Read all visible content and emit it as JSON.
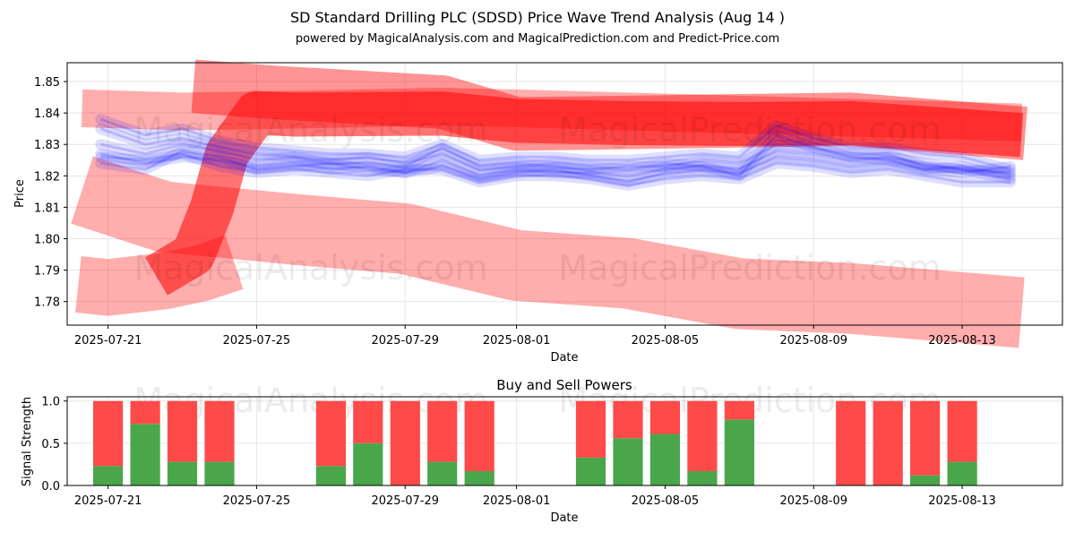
{
  "header": {
    "title": "SD Standard Drilling PLC (SDSD) Price Wave Trend Analysis (Aug 14 )",
    "subtitle": "powered by MagicalAnalysis.com and MagicalPrediction.com and Predict-Price.com"
  },
  "watermarks": [
    "MagicalAnalysis.com",
    "MagicalPrediction.com"
  ],
  "colors": {
    "red_band": "#ff0000",
    "blue_band": "#0000ff",
    "buy": "#4aa64a",
    "sell": "#ff4a4a",
    "grid": "#e6e6e6"
  },
  "chart_data": [
    {
      "type": "area",
      "title": "",
      "xlabel": "Date",
      "ylabel": "Price",
      "x_ticks": [
        "2025-07-21",
        "2025-07-25",
        "2025-07-29",
        "2025-08-01",
        "2025-08-05",
        "2025-08-09",
        "2025-08-13"
      ],
      "y_ticks": [
        "1.78",
        "1.79",
        "1.80",
        "1.81",
        "1.82",
        "1.83",
        "1.84",
        "1.85"
      ],
      "ylim": [
        1.7725,
        1.856
      ],
      "xlim_days": [
        -1.1,
        25.7
      ],
      "red_bands": [
        {
          "name": "upper-band",
          "x": [
            -0.7,
            2,
            5,
            9,
            11,
            14,
            17,
            20,
            24.6
          ],
          "y": [
            1.8415,
            1.8405,
            1.841,
            1.842,
            1.8415,
            1.8405,
            1.8395,
            1.8385,
            1.837
          ],
          "width": 0.012,
          "opacity": 0.32
        },
        {
          "name": "wide-upper-band",
          "x": [
            2.3,
            4.5,
            9,
            11,
            14,
            17,
            20,
            24.7
          ],
          "y": [
            1.8485,
            1.8465,
            1.8435,
            1.8365,
            1.837,
            1.8375,
            1.838,
            1.8335
          ],
          "width": 0.017,
          "opacity": 0.42
        },
        {
          "name": "cross-band",
          "x": [
            1.3,
            2.3,
            2.8,
            3.2,
            4.0,
            5.0,
            9.0,
            11.0,
            14.0,
            17.0,
            20.0,
            24.6
          ],
          "y": [
            1.788,
            1.795,
            1.81,
            1.827,
            1.84,
            1.8395,
            1.8398,
            1.8375,
            1.8368,
            1.8365,
            1.8368,
            1.833
          ],
          "width": 0.014,
          "opacity": 0.55
        },
        {
          "name": "lower-band",
          "x": [
            -0.7,
            1.5,
            5,
            8,
            11,
            14,
            17,
            20,
            24.6
          ],
          "y": [
            1.8155,
            1.807,
            1.803,
            1.8,
            1.7915,
            1.789,
            1.7825,
            1.781,
            1.7765
          ],
          "width": 0.0225,
          "opacity": 0.32
        },
        {
          "name": "bottom-band",
          "x": [
            -0.8,
            0,
            1.5,
            2.5,
            3.4
          ],
          "y": [
            1.7855,
            1.7845,
            1.7865,
            1.789,
            1.7925
          ],
          "width": 0.018,
          "opacity": 0.32
        }
      ],
      "blue_lines": [
        {
          "x": [
            -0.2,
            1,
            2,
            3,
            4,
            5,
            6,
            7,
            8,
            9,
            10,
            11,
            12,
            13,
            14,
            15,
            16,
            17,
            18,
            19,
            20,
            21,
            22,
            23,
            24.3
          ],
          "y": [
            1.827,
            1.824,
            1.826,
            1.825,
            1.823,
            1.824,
            1.822,
            1.823,
            1.821,
            1.825,
            1.82,
            1.822,
            1.821,
            1.821,
            1.82,
            1.822,
            1.823,
            1.822,
            1.828,
            1.827,
            1.825,
            1.826,
            1.824,
            1.822,
            1.821
          ]
        },
        {
          "x": [
            -0.2,
            1,
            2,
            3,
            4,
            5,
            6,
            7,
            8,
            9,
            10,
            11,
            12,
            13,
            14,
            15,
            16,
            17,
            18,
            19,
            20,
            21,
            22,
            23,
            24.3
          ],
          "y": [
            1.835,
            1.83,
            1.832,
            1.829,
            1.827,
            1.826,
            1.825,
            1.826,
            1.824,
            1.827,
            1.822,
            1.823,
            1.824,
            1.823,
            1.822,
            1.824,
            1.823,
            1.82,
            1.833,
            1.829,
            1.827,
            1.827,
            1.823,
            1.822,
            1.819
          ]
        },
        {
          "x": [
            -0.2,
            1,
            2,
            3,
            4,
            5,
            6,
            7,
            8,
            9,
            10,
            11,
            12,
            13,
            14,
            15,
            16,
            17,
            18,
            19,
            20,
            21,
            22,
            23,
            24.3
          ],
          "y": [
            1.824,
            1.822,
            1.828,
            1.826,
            1.822,
            1.823,
            1.824,
            1.822,
            1.821,
            1.823,
            1.819,
            1.821,
            1.822,
            1.82,
            1.818,
            1.821,
            1.822,
            1.821,
            1.826,
            1.825,
            1.823,
            1.824,
            1.822,
            1.821,
            1.823
          ]
        },
        {
          "x": [
            -0.2,
            1,
            2,
            3,
            4,
            5,
            6,
            7,
            8,
            9,
            10,
            11,
            12,
            13,
            14,
            15,
            16,
            17,
            18,
            19,
            20,
            21,
            22,
            23,
            24.3
          ],
          "y": [
            1.83,
            1.827,
            1.83,
            1.828,
            1.825,
            1.826,
            1.824,
            1.824,
            1.823,
            1.829,
            1.823,
            1.824,
            1.823,
            1.822,
            1.823,
            1.823,
            1.825,
            1.824,
            1.83,
            1.829,
            1.826,
            1.825,
            1.822,
            1.823,
            1.82
          ]
        },
        {
          "x": [
            -0.2,
            1,
            2,
            3,
            4,
            5,
            6,
            7,
            8,
            9,
            10,
            11,
            12,
            13,
            14,
            15,
            16,
            17,
            18,
            19,
            20,
            21,
            22,
            23,
            24.3
          ],
          "y": [
            1.826,
            1.825,
            1.827,
            1.823,
            1.821,
            1.822,
            1.821,
            1.82,
            1.822,
            1.822,
            1.818,
            1.82,
            1.82,
            1.819,
            1.817,
            1.819,
            1.82,
            1.819,
            1.824,
            1.823,
            1.821,
            1.822,
            1.82,
            1.818,
            1.818
          ]
        },
        {
          "x": [
            -0.2,
            1,
            2,
            3,
            4,
            5,
            6,
            7,
            8,
            9,
            10,
            11,
            12,
            13,
            14,
            15,
            16,
            17,
            18,
            19,
            20,
            21,
            22,
            23,
            24.3
          ],
          "y": [
            1.838,
            1.833,
            1.835,
            1.831,
            1.829,
            1.828,
            1.827,
            1.827,
            1.826,
            1.83,
            1.825,
            1.826,
            1.826,
            1.825,
            1.825,
            1.826,
            1.827,
            1.826,
            1.836,
            1.832,
            1.829,
            1.829,
            1.827,
            1.826,
            1.822
          ]
        }
      ]
    },
    {
      "type": "bar",
      "title": "Buy and Sell Powers",
      "xlabel": "Date",
      "ylabel": "Signal Strength",
      "x_ticks": [
        "2025-07-21",
        "2025-07-25",
        "2025-07-29",
        "2025-08-01",
        "2025-08-05",
        "2025-08-09",
        "2025-08-13"
      ],
      "y_ticks": [
        "0.0",
        "0.5",
        "1.0"
      ],
      "ylim": [
        0,
        1.05
      ],
      "xlim_days": [
        -1.1,
        25.7
      ],
      "days": [
        0,
        1,
        2,
        3,
        6,
        7,
        8,
        9,
        10,
        13,
        14,
        15,
        16,
        17,
        20,
        21,
        22,
        23
      ],
      "series": [
        {
          "name": "Buy",
          "values": [
            0.23,
            0.73,
            0.28,
            0.28,
            0.23,
            0.5,
            0.0,
            0.28,
            0.17,
            0.33,
            0.56,
            0.61,
            0.17,
            0.78,
            0.0,
            0.0,
            0.12,
            0.28
          ]
        },
        {
          "name": "Sell",
          "values": [
            0.77,
            0.27,
            0.72,
            0.72,
            0.77,
            0.5,
            1.0,
            0.72,
            0.83,
            0.67,
            0.44,
            0.39,
            0.83,
            0.22,
            1.0,
            1.0,
            0.88,
            0.72
          ]
        }
      ]
    }
  ]
}
